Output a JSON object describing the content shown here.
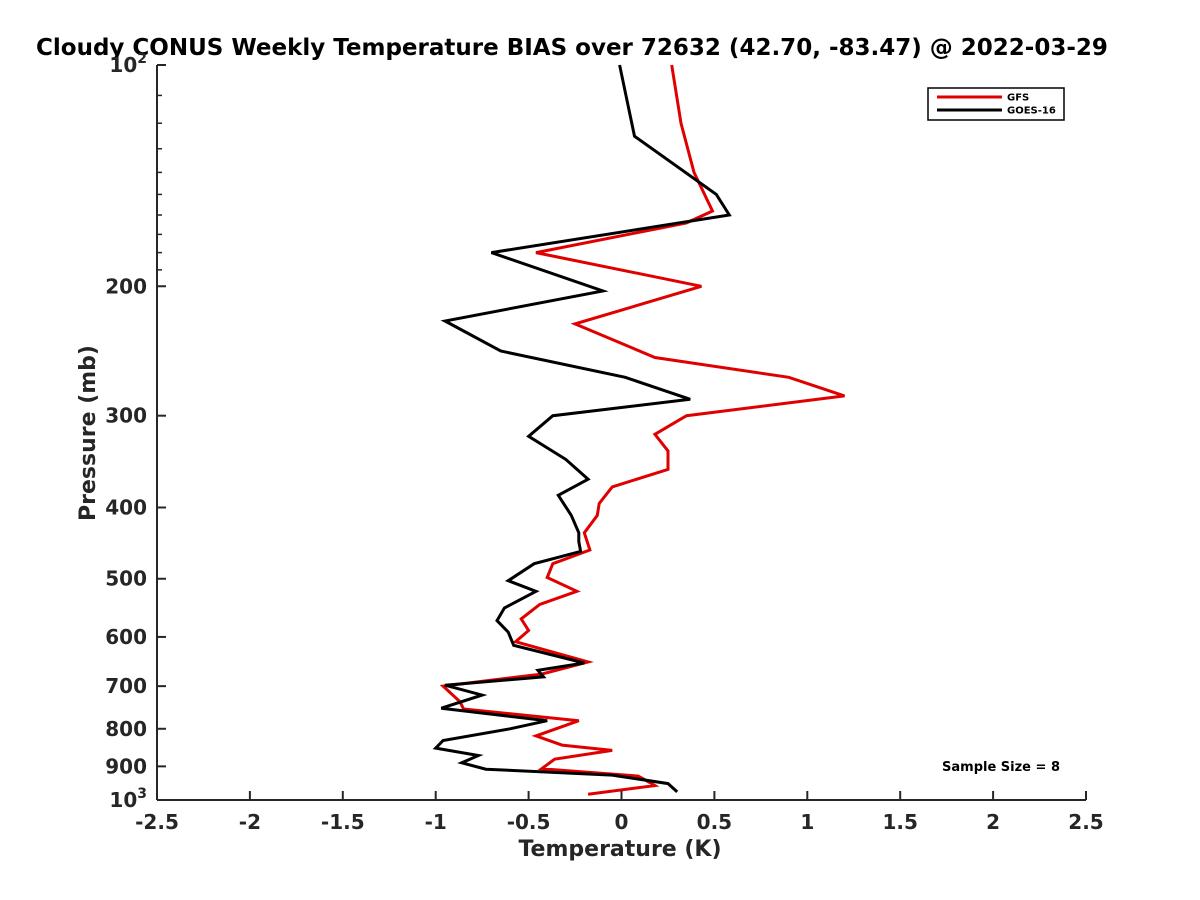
{
  "chart_data": {
    "type": "line",
    "title": "Cloudy CONUS Weekly Temperature BIAS over 72632 (42.70, -83.47) @ 2022-03-29",
    "xlabel": "Temperature (K)",
    "ylabel": "Pressure (mb)",
    "xlim": [
      -2.5,
      2.5
    ],
    "ylim": [
      100,
      1000
    ],
    "y_scale": "log",
    "y_reversed": true,
    "x_ticks": [
      "-2.5",
      "-2",
      "-1.5",
      "-1",
      "-0.5",
      "0",
      "0.5",
      "1",
      "1.5",
      "2",
      "2.5"
    ],
    "y_ticks": [
      {
        "value": 100,
        "label": "10",
        "sup": "2"
      },
      {
        "value": 200,
        "label": "200",
        "sup": ""
      },
      {
        "value": 300,
        "label": "300",
        "sup": ""
      },
      {
        "value": 400,
        "label": "400",
        "sup": ""
      },
      {
        "value": 500,
        "label": "500",
        "sup": ""
      },
      {
        "value": 600,
        "label": "600",
        "sup": ""
      },
      {
        "value": 700,
        "label": "700",
        "sup": ""
      },
      {
        "value": 800,
        "label": "800",
        "sup": ""
      },
      {
        "value": 900,
        "label": "900",
        "sup": ""
      },
      {
        "value": 1000,
        "label": "10",
        "sup": "3"
      }
    ],
    "grid": false,
    "legend_position": "top-right",
    "annotation": "Sample Size = 8",
    "series": [
      {
        "name": "GFS",
        "color": "#e00000",
        "points": [
          {
            "x": 0.27,
            "p": 100
          },
          {
            "x": 0.32,
            "p": 120
          },
          {
            "x": 0.39,
            "p": 140
          },
          {
            "x": 0.49,
            "p": 158
          },
          {
            "x": 0.35,
            "p": 164
          },
          {
            "x": -0.46,
            "p": 180
          },
          {
            "x": 0.43,
            "p": 200
          },
          {
            "x": -0.25,
            "p": 225
          },
          {
            "x": 0.18,
            "p": 250
          },
          {
            "x": 0.9,
            "p": 266
          },
          {
            "x": 1.2,
            "p": 282
          },
          {
            "x": 0.35,
            "p": 300
          },
          {
            "x": 0.18,
            "p": 318
          },
          {
            "x": 0.25,
            "p": 335
          },
          {
            "x": 0.25,
            "p": 355
          },
          {
            "x": -0.05,
            "p": 375
          },
          {
            "x": -0.12,
            "p": 395
          },
          {
            "x": -0.13,
            "p": 410
          },
          {
            "x": -0.2,
            "p": 433
          },
          {
            "x": -0.17,
            "p": 457
          },
          {
            "x": -0.37,
            "p": 477
          },
          {
            "x": -0.4,
            "p": 498
          },
          {
            "x": -0.24,
            "p": 520
          },
          {
            "x": -0.44,
            "p": 542
          },
          {
            "x": -0.54,
            "p": 567
          },
          {
            "x": -0.5,
            "p": 588
          },
          {
            "x": -0.57,
            "p": 609
          },
          {
            "x": -0.18,
            "p": 649
          },
          {
            "x": -0.43,
            "p": 674
          },
          {
            "x": -0.96,
            "p": 700
          },
          {
            "x": -0.87,
            "p": 735
          },
          {
            "x": -0.85,
            "p": 752
          },
          {
            "x": -0.23,
            "p": 780
          },
          {
            "x": -0.46,
            "p": 818
          },
          {
            "x": -0.32,
            "p": 842
          },
          {
            "x": -0.05,
            "p": 856
          },
          {
            "x": -0.36,
            "p": 880
          },
          {
            "x": -0.43,
            "p": 907
          },
          {
            "x": 0.09,
            "p": 928
          },
          {
            "x": 0.13,
            "p": 940
          },
          {
            "x": 0.18,
            "p": 956
          },
          {
            "x": -0.18,
            "p": 982
          }
        ]
      },
      {
        "name": "GOES-16",
        "color": "#000000",
        "points": [
          {
            "x": -0.01,
            "p": 100
          },
          {
            "x": 0.07,
            "p": 125
          },
          {
            "x": 0.51,
            "p": 150
          },
          {
            "x": 0.58,
            "p": 160
          },
          {
            "x": -0.7,
            "p": 180
          },
          {
            "x": -0.1,
            "p": 203
          },
          {
            "x": -0.95,
            "p": 223
          },
          {
            "x": -0.65,
            "p": 245
          },
          {
            "x": 0.02,
            "p": 266
          },
          {
            "x": 0.37,
            "p": 285
          },
          {
            "x": -0.37,
            "p": 300
          },
          {
            "x": -0.5,
            "p": 320
          },
          {
            "x": -0.3,
            "p": 344
          },
          {
            "x": -0.18,
            "p": 366
          },
          {
            "x": -0.34,
            "p": 385
          },
          {
            "x": -0.27,
            "p": 410
          },
          {
            "x": -0.23,
            "p": 433
          },
          {
            "x": -0.23,
            "p": 445
          },
          {
            "x": -0.22,
            "p": 459
          },
          {
            "x": -0.47,
            "p": 477
          },
          {
            "x": -0.61,
            "p": 503
          },
          {
            "x": -0.46,
            "p": 520
          },
          {
            "x": -0.63,
            "p": 548
          },
          {
            "x": -0.67,
            "p": 570
          },
          {
            "x": -0.61,
            "p": 591
          },
          {
            "x": -0.58,
            "p": 616
          },
          {
            "x": -0.2,
            "p": 651
          },
          {
            "x": -0.45,
            "p": 666
          },
          {
            "x": -0.42,
            "p": 680
          },
          {
            "x": -0.95,
            "p": 698
          },
          {
            "x": -0.75,
            "p": 720
          },
          {
            "x": -0.97,
            "p": 750
          },
          {
            "x": -0.4,
            "p": 780
          },
          {
            "x": -0.6,
            "p": 800
          },
          {
            "x": -0.96,
            "p": 830
          },
          {
            "x": -1.0,
            "p": 850
          },
          {
            "x": -0.77,
            "p": 870
          },
          {
            "x": -0.86,
            "p": 890
          },
          {
            "x": -0.73,
            "p": 908
          },
          {
            "x": -0.05,
            "p": 925
          },
          {
            "x": 0.25,
            "p": 950
          },
          {
            "x": 0.3,
            "p": 975
          }
        ]
      }
    ]
  }
}
